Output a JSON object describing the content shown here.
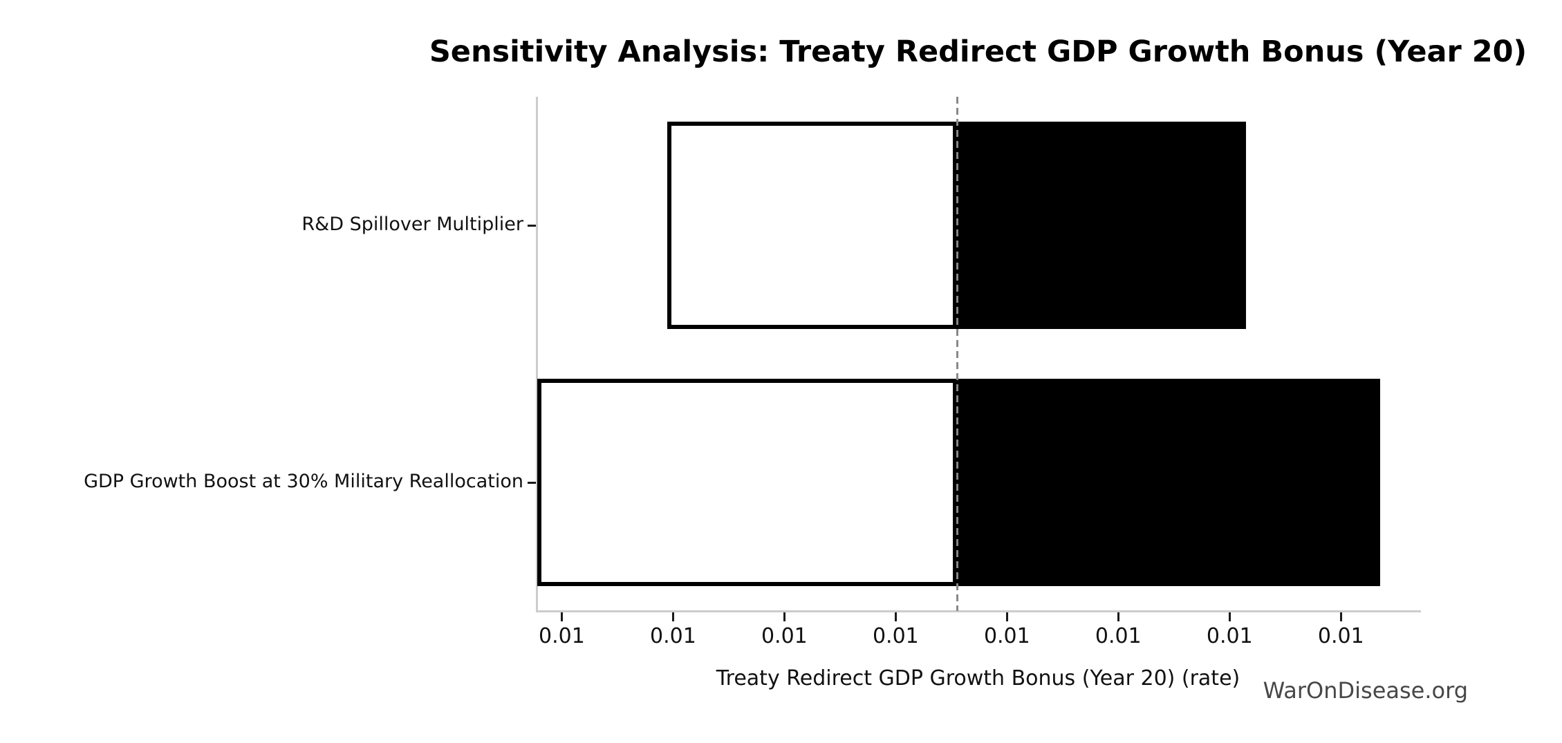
{
  "watermark": "WarOnDisease.org",
  "chart_data": {
    "type": "bar",
    "variant": "tornado-sensitivity",
    "orientation": "horizontal",
    "title": "Sensitivity Analysis: Treaty Redirect GDP Growth Bonus (Year 20)",
    "xlabel": "Treaty Redirect GDP Growth Bonus (Year 20) (rate)",
    "ylabel": "",
    "categories": [
      "R&D Spillover Multiplier",
      "GDP Growth Boost at 30% Military Reallocation"
    ],
    "bars": [
      {
        "category": "R&D Spillover Multiplier",
        "low": 0.00695,
        "high": 0.01215
      },
      {
        "category": "GDP Growth Boost at 30% Military Reallocation",
        "low": 0.00578,
        "high": 0.01335
      }
    ],
    "base_value": 0.00955,
    "xlim": [
      0.00578,
      0.0137
    ],
    "xticks": [
      0.006,
      0.007,
      0.008,
      0.009,
      0.01,
      0.011,
      0.012,
      0.013
    ],
    "xtick_labels": [
      "0.01",
      "0.01",
      "0.01",
      "0.01",
      "0.01",
      "0.01",
      "0.01",
      "0.01"
    ],
    "grid": false,
    "legend": null,
    "colors": {
      "low_side_fill": "#ffffff",
      "high_side_fill": "#000000",
      "bar_edge": "#000000",
      "baseline_dash": "#888888",
      "spine": "#cccccc",
      "tick": "#1a1a1a",
      "text": "#111111",
      "title": "#000000",
      "watermark": "#474747",
      "background": "#ffffff"
    }
  }
}
